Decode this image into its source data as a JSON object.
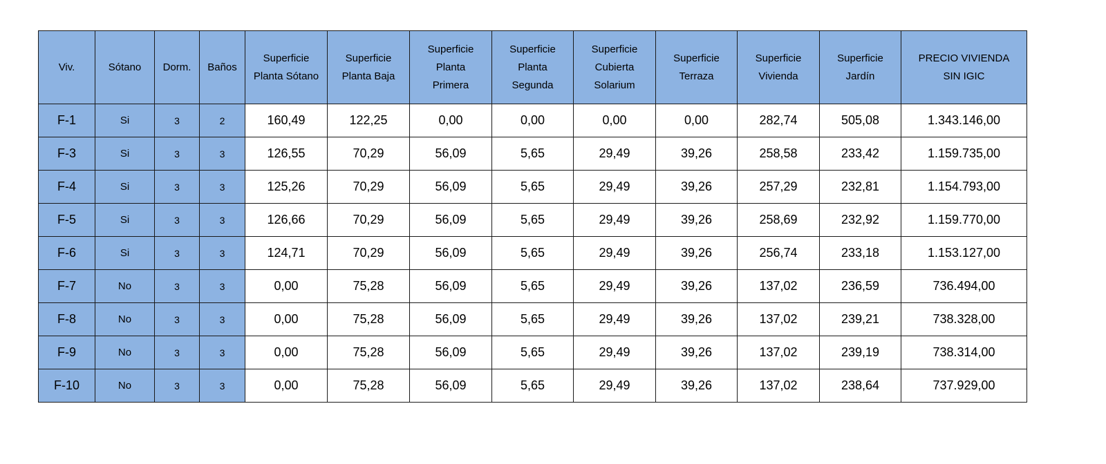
{
  "table": {
    "headers": [
      [
        "Viv."
      ],
      [
        "Sótano"
      ],
      [
        "Dorm."
      ],
      [
        "Baños"
      ],
      [
        "Superficie",
        "Planta Sótano"
      ],
      [
        "Superficie",
        "Planta Baja"
      ],
      [
        "Superficie",
        "Planta",
        "Primera"
      ],
      [
        "Superficie",
        "Planta",
        "Segunda"
      ],
      [
        "Superficie",
        "Cubierta",
        "Solarium"
      ],
      [
        "Superficie",
        "Terraza"
      ],
      [
        "Superficie",
        "Vivienda"
      ],
      [
        "Superficie",
        "Jardín"
      ],
      [
        "PRECIO VIVIENDA",
        "SIN IGIC"
      ]
    ],
    "rows": [
      [
        "F-1",
        "Si",
        "3",
        "2",
        "160,49",
        "122,25",
        "0,00",
        "0,00",
        "0,00",
        "0,00",
        "282,74",
        "505,08",
        "1.343.146,00"
      ],
      [
        "F-3",
        "Si",
        "3",
        "3",
        "126,55",
        "70,29",
        "56,09",
        "5,65",
        "29,49",
        "39,26",
        "258,58",
        "233,42",
        "1.159.735,00"
      ],
      [
        "F-4",
        "Si",
        "3",
        "3",
        "125,26",
        "70,29",
        "56,09",
        "5,65",
        "29,49",
        "39,26",
        "257,29",
        "232,81",
        "1.154.793,00"
      ],
      [
        "F-5",
        "Si",
        "3",
        "3",
        "126,66",
        "70,29",
        "56,09",
        "5,65",
        "29,49",
        "39,26",
        "258,69",
        "232,92",
        "1.159.770,00"
      ],
      [
        "F-6",
        "Si",
        "3",
        "3",
        "124,71",
        "70,29",
        "56,09",
        "5,65",
        "29,49",
        "39,26",
        "256,74",
        "233,18",
        "1.153.127,00"
      ],
      [
        "F-7",
        "No",
        "3",
        "3",
        "0,00",
        "75,28",
        "56,09",
        "5,65",
        "29,49",
        "39,26",
        "137,02",
        "236,59",
        "736.494,00"
      ],
      [
        "F-8",
        "No",
        "3",
        "3",
        "0,00",
        "75,28",
        "56,09",
        "5,65",
        "29,49",
        "39,26",
        "137,02",
        "239,21",
        "738.328,00"
      ],
      [
        "F-9",
        "No",
        "3",
        "3",
        "0,00",
        "75,28",
        "56,09",
        "5,65",
        "29,49",
        "39,26",
        "137,02",
        "239,19",
        "738.314,00"
      ],
      [
        "F-10",
        "No",
        "3",
        "3",
        "0,00",
        "75,28",
        "56,09",
        "5,65",
        "29,49",
        "39,26",
        "137,02",
        "238,64",
        "737.929,00"
      ]
    ]
  },
  "colors": {
    "header_fill": "#8db3e2",
    "border": "#1a1a1a"
  }
}
